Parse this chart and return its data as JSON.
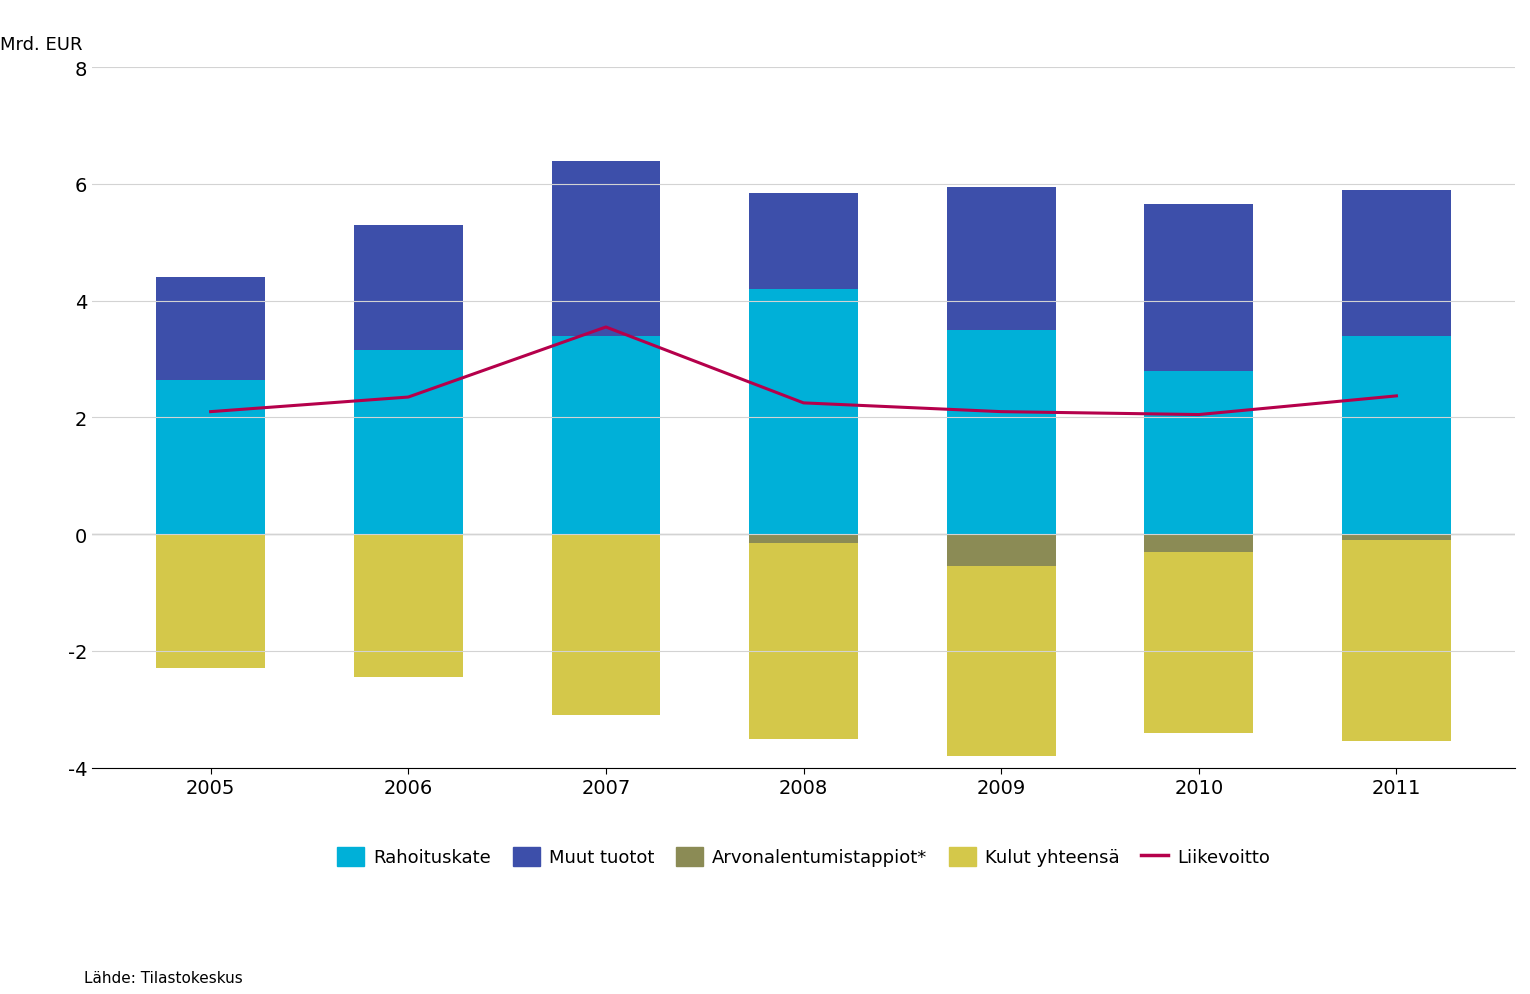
{
  "years": [
    2005,
    2006,
    2007,
    2008,
    2009,
    2010,
    2011
  ],
  "rahoituskate": [
    2.65,
    3.15,
    3.4,
    4.2,
    3.5,
    2.8,
    3.4
  ],
  "muut_tuotot": [
    1.75,
    2.15,
    3.0,
    1.65,
    2.45,
    2.85,
    2.5
  ],
  "arvonalentumistappiot": [
    0.0,
    0.0,
    0.0,
    -0.15,
    -0.55,
    -0.3,
    -0.1
  ],
  "kulut_yhteensa": [
    -2.3,
    -2.45,
    -3.1,
    -3.35,
    -3.25,
    -3.1,
    -3.45
  ],
  "liikevoitto": [
    2.1,
    2.35,
    3.55,
    2.25,
    2.1,
    2.05,
    2.37
  ],
  "colors": {
    "rahoituskate": "#00B0D8",
    "muut_tuotot": "#3D4FAA",
    "arvonalentumistappiot": "#8B8B55",
    "kulut_yhteensa": "#D4C84A",
    "liikevoitto": "#B5004B"
  },
  "ylim": [
    -4,
    8
  ],
  "yticks": [
    -4,
    -2,
    0,
    2,
    4,
    6,
    8
  ],
  "ylabel": "Mrd. EUR",
  "legend_labels": [
    "Rahoituskate",
    "Muut tuotot",
    "Arvonalentumistappiot*",
    "Kulut yhteensä",
    "Liikevoitto"
  ],
  "source": "Lähde: Tilastokeskus",
  "bar_width": 0.55
}
